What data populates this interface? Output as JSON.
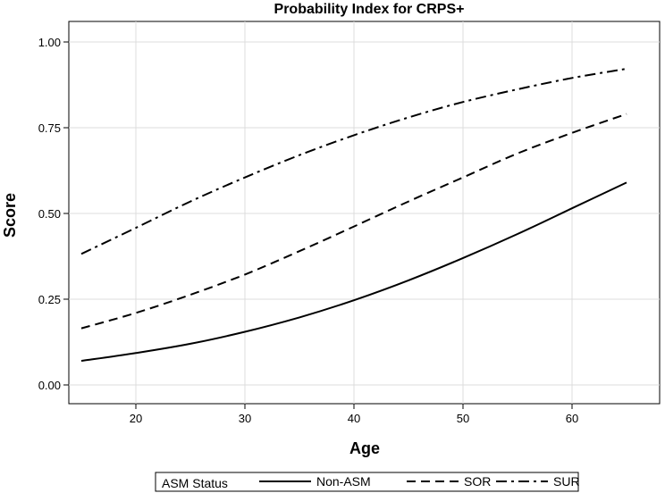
{
  "chart_data": {
    "type": "line",
    "title": "Probability Index for CRPS+",
    "xlabel": "Age",
    "ylabel": "Score",
    "xlim": [
      15,
      65
    ],
    "ylim": [
      0.0,
      1.0
    ],
    "xticks": [
      20,
      30,
      40,
      50,
      60
    ],
    "xtick_labels": [
      "20",
      "30",
      "40",
      "50",
      "60"
    ],
    "yticks": [
      0.0,
      0.25,
      0.5,
      0.75,
      1.0
    ],
    "ytick_labels": [
      "0.00",
      "0.25",
      "0.50",
      "0.75",
      "1.00"
    ],
    "grid": true,
    "legend": {
      "title": "ASM Status",
      "placement": "bottom",
      "entries": [
        "Non-ASM",
        "SOR",
        "SUR"
      ]
    },
    "x": [
      15,
      20,
      25,
      30,
      35,
      40,
      45,
      50,
      55,
      60,
      65
    ],
    "series": [
      {
        "name": "Non-ASM",
        "style": "solid",
        "values": [
          0.07,
          0.093,
          0.12,
          0.155,
          0.197,
          0.247,
          0.305,
          0.37,
          0.44,
          0.515,
          0.59
        ]
      },
      {
        "name": "SOR",
        "style": "dashed",
        "values": [
          0.165,
          0.21,
          0.263,
          0.322,
          0.39,
          0.462,
          0.535,
          0.605,
          0.675,
          0.735,
          0.79
        ]
      },
      {
        "name": "SUR",
        "style": "dashdot",
        "values": [
          0.382,
          0.458,
          0.535,
          0.605,
          0.67,
          0.728,
          0.78,
          0.825,
          0.862,
          0.895,
          0.922
        ]
      }
    ]
  }
}
